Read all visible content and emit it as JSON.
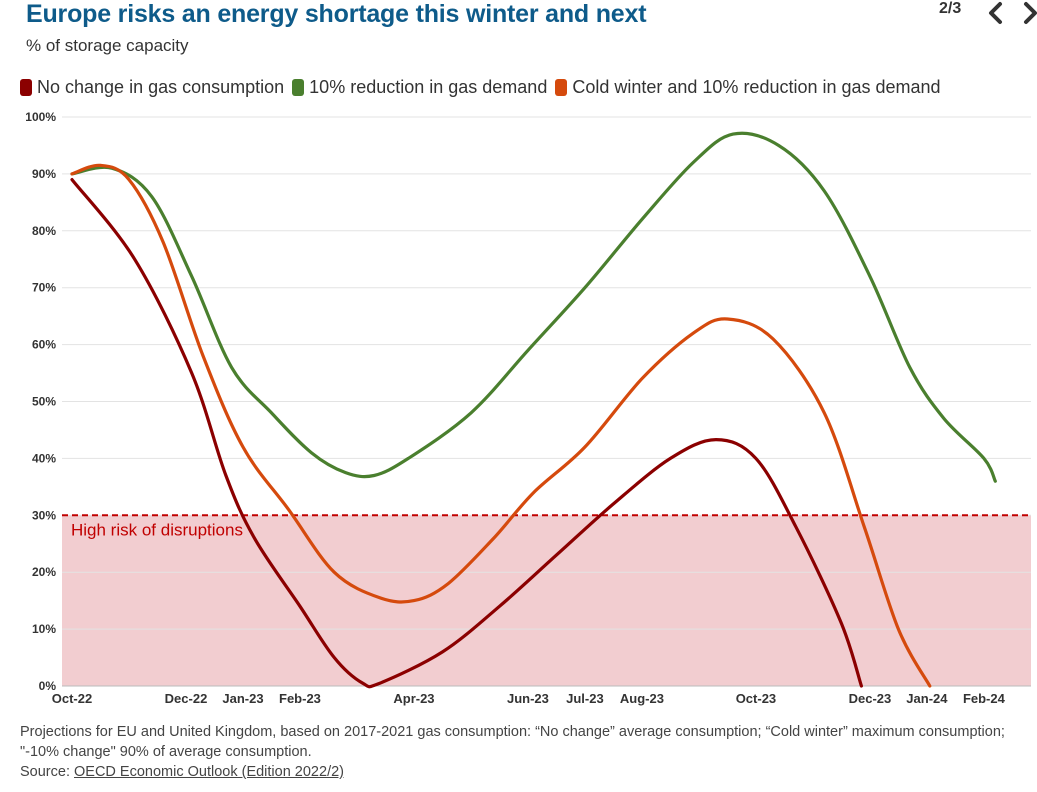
{
  "header": {
    "title": "Europe risks an energy shortage this winter and next",
    "subtitle": "% of storage capacity",
    "pager": "2/3"
  },
  "colors": {
    "no_change": "#8b0000",
    "reduction": "#4a7f2e",
    "cold": "#d54a0d",
    "title": "#0e5b8a",
    "risk_zone": "#f2cdd0",
    "threshold": "#c00000"
  },
  "icons": {
    "prev": "chevron-left-icon",
    "next": "chevron-right-icon"
  },
  "chart_data": {
    "type": "line",
    "title": "Europe risks an energy shortage this winter and next",
    "ylabel": "% of storage capacity",
    "ylim": [
      0,
      100
    ],
    "yticks": [
      "0%",
      "10%",
      "20%",
      "30%",
      "40%",
      "50%",
      "60%",
      "70%",
      "80%",
      "90%",
      "100%"
    ],
    "xdomain": [
      0,
      16.3
    ],
    "x_ticks": [
      {
        "label": "Oct-22",
        "x": 0
      },
      {
        "label": "Dec-22",
        "x": 2.0
      },
      {
        "label": "Jan-23",
        "x": 3.0
      },
      {
        "label": "Feb-23",
        "x": 4.0
      },
      {
        "label": "Apr-23",
        "x": 6.0
      },
      {
        "label": "Jun-23",
        "x": 8.0
      },
      {
        "label": "Jul-23",
        "x": 9.0
      },
      {
        "label": "Aug-23",
        "x": 10.0
      },
      {
        "label": "Oct-23",
        "x": 12.0
      },
      {
        "label": "Dec-23",
        "x": 14.0
      },
      {
        "label": "Jan-24",
        "x": 15.0
      },
      {
        "label": "Feb-24",
        "x": 16.0
      }
    ],
    "series": [
      {
        "name": "No change in gas consumption",
        "color": "#8b0000",
        "x": [
          0,
          1.1,
          2.1,
          2.7,
          3.2,
          4.0,
          4.6,
          5.1,
          5.4,
          6.5,
          7.5,
          8.5,
          9.5,
          10.5,
          11.3,
          12.0,
          12.7,
          13.5,
          13.85
        ],
        "y": [
          89,
          75,
          55,
          37,
          26,
          14,
          5,
          0.5,
          0.5,
          6,
          14,
          23,
          32,
          40,
          43.3,
          40,
          28,
          11,
          0
        ]
      },
      {
        "name": "10% reduction in gas demand",
        "color": "#4a7f2e",
        "x": [
          0,
          0.7,
          1.4,
          2.1,
          2.8,
          3.5,
          4.2,
          4.8,
          5.3,
          5.9,
          7.0,
          8.0,
          9.0,
          10.0,
          10.9,
          11.6,
          12.4,
          13.2,
          14.0,
          14.7,
          15.3,
          16.0,
          16.2
        ],
        "y": [
          90,
          91,
          86,
          72,
          56,
          48,
          41,
          37.5,
          37,
          40,
          48,
          59,
          70,
          82,
          92,
          97,
          95,
          87,
          72,
          56,
          47,
          40,
          36
        ]
      },
      {
        "name": "Cold winter and 10% reduction in gas demand",
        "color": "#d54a0d",
        "x": [
          0,
          0.5,
          1.0,
          1.6,
          2.3,
          3.0,
          3.8,
          4.6,
          5.4,
          6.0,
          6.6,
          7.4,
          8.1,
          9.0,
          10.0,
          10.9,
          11.5,
          12.3,
          13.2,
          13.9,
          14.5,
          15.05
        ],
        "y": [
          90,
          91.5,
          89,
          78,
          58,
          42,
          31,
          20,
          15.5,
          15,
          18,
          26,
          34,
          42,
          54,
          62,
          64.5,
          61,
          48,
          28,
          10,
          0
        ]
      }
    ],
    "threshold": {
      "y": 30,
      "label": "High risk of disruptions"
    },
    "legend_position": "top-left",
    "grid": true
  },
  "footer": {
    "note": "Projections for EU and United Kingdom, based on 2017-2021 gas consumption: “No change” average consumption; “Cold winter” maximum consumption; \"-10% change\" 90% of average consumption.",
    "source_label": "Source: ",
    "source_link": "OECD Economic Outlook (Edition 2022/2)"
  }
}
